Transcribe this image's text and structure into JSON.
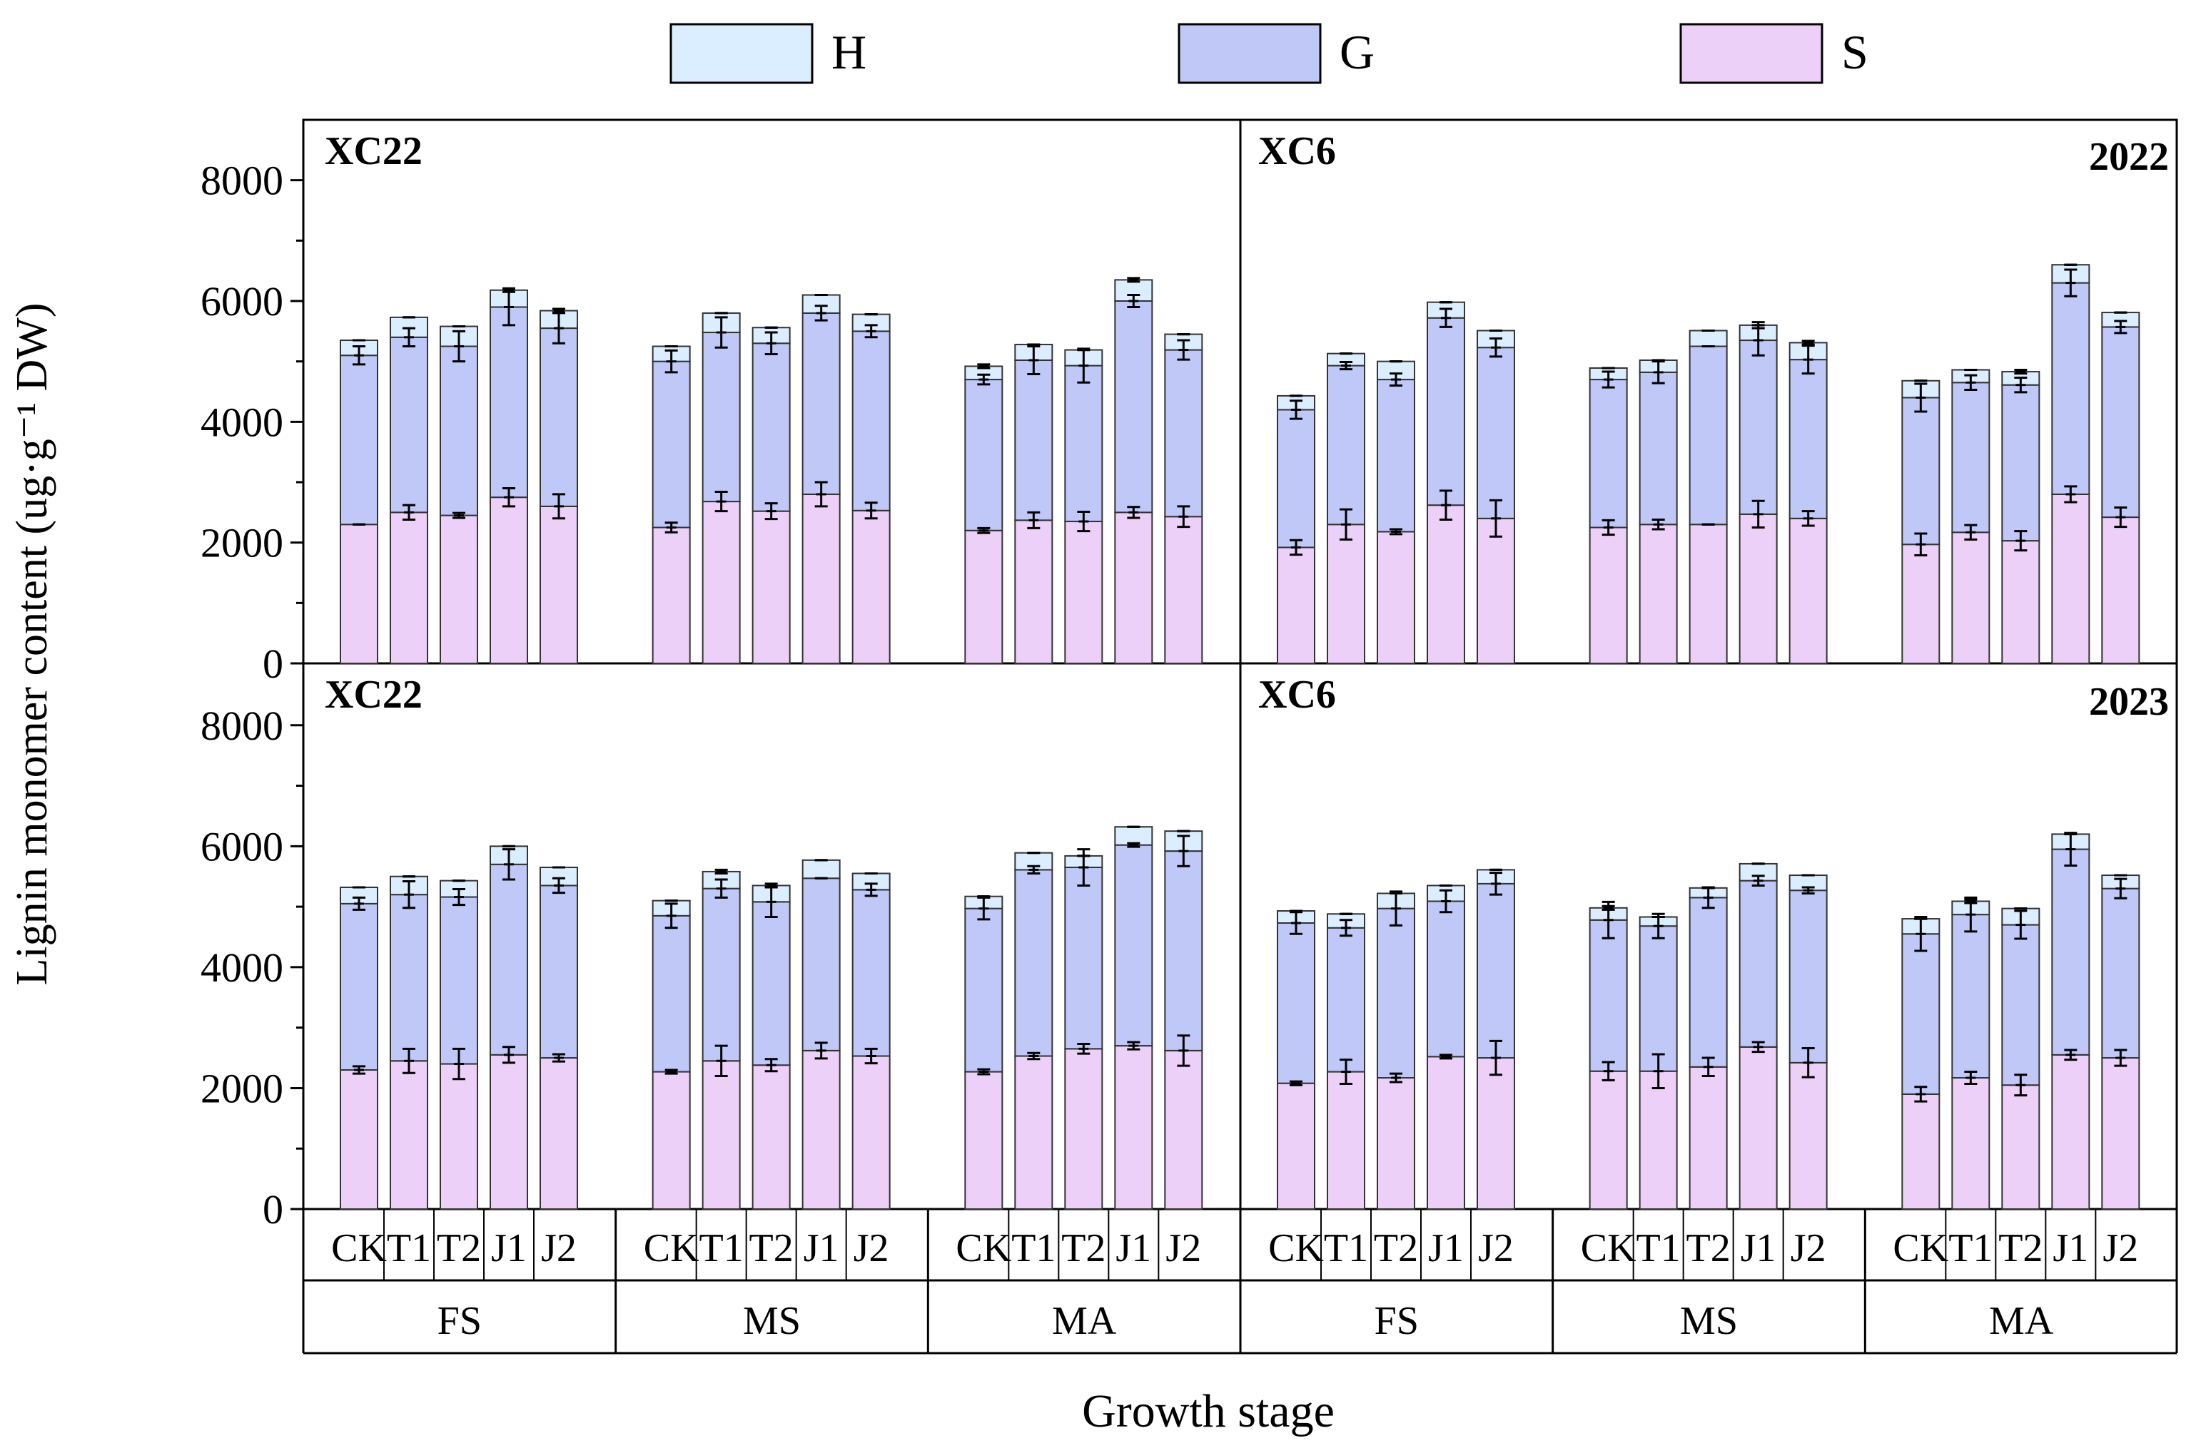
{
  "legend": [
    {
      "key": "H",
      "label": "H",
      "color": "#dbeeff"
    },
    {
      "key": "G",
      "label": "G",
      "color": "#bfc8f7"
    },
    {
      "key": "S",
      "label": "S",
      "color": "#edd0f8"
    }
  ],
  "chart_data": {
    "type": "bar",
    "stacked": true,
    "ylabel": "Lignin monomer content (ug·g⁻¹ DW)",
    "xlabel": "Growth stage",
    "ylim": [
      0,
      9000
    ],
    "yticks": [
      0,
      2000,
      4000,
      6000,
      8000
    ],
    "treatments": [
      "CK",
      "T1",
      "T2",
      "J1",
      "J2"
    ],
    "stages": [
      "FS",
      "MS",
      "MA"
    ],
    "stack_order": [
      "S",
      "G",
      "H"
    ],
    "panels": [
      {
        "cultivar": "XC22",
        "year": "",
        "row": 0,
        "col": 0,
        "S": [
          [
            2300,
            2500,
            2450,
            2750,
            2600
          ],
          [
            2250,
            2680,
            2520,
            2800,
            2530
          ],
          [
            2200,
            2370,
            2350,
            2500,
            2430
          ]
        ],
        "G": [
          [
            2800,
            2900,
            2800,
            3150,
            2950
          ],
          [
            2750,
            2800,
            2780,
            3000,
            2970
          ],
          [
            2500,
            2650,
            2580,
            3500,
            2760
          ]
        ],
        "H": [
          [
            250,
            330,
            330,
            280,
            290
          ],
          [
            250,
            320,
            260,
            300,
            280
          ],
          [
            220,
            260,
            260,
            350,
            260
          ]
        ],
        "errS": [
          [
            0,
            120,
            40,
            150,
            200
          ],
          [
            80,
            160,
            130,
            200,
            130
          ],
          [
            40,
            130,
            160,
            90,
            170
          ]
        ],
        "errSG": [
          [
            150,
            150,
            250,
            300,
            250
          ],
          [
            180,
            250,
            180,
            120,
            100
          ],
          [
            80,
            230,
            280,
            100,
            160
          ]
        ],
        "errTot": [
          [
            0,
            0,
            0,
            30,
            30
          ],
          [
            0,
            0,
            0,
            0,
            0
          ],
          [
            30,
            0,
            0,
            30,
            0
          ]
        ]
      },
      {
        "cultivar": "XC6",
        "year": "2022",
        "row": 0,
        "col": 1,
        "S": [
          [
            1920,
            2300,
            2180,
            2620,
            2400
          ],
          [
            2250,
            2300,
            2300,
            2470,
            2400
          ],
          [
            1970,
            2170,
            2030,
            2800,
            2420
          ]
        ],
        "G": [
          [
            2280,
            2630,
            2520,
            3100,
            2830
          ],
          [
            2450,
            2520,
            2950,
            2880,
            2630
          ],
          [
            2430,
            2480,
            2580,
            3500,
            3150
          ]
        ],
        "H": [
          [
            230,
            200,
            300,
            260,
            280
          ],
          [
            190,
            200,
            260,
            250,
            280
          ],
          [
            280,
            210,
            220,
            300,
            240
          ]
        ],
        "errS": [
          [
            120,
            250,
            40,
            240,
            300
          ],
          [
            120,
            80,
            0,
            220,
            120
          ],
          [
            180,
            120,
            160,
            130,
            160
          ]
        ],
        "errSG": [
          [
            150,
            60,
            100,
            150,
            150
          ],
          [
            130,
            180,
            0,
            250,
            230
          ],
          [
            230,
            120,
            120,
            220,
            100
          ]
        ],
        "errTot": [
          [
            0,
            0,
            0,
            0,
            0
          ],
          [
            0,
            0,
            0,
            50,
            30
          ],
          [
            0,
            0,
            30,
            0,
            0
          ]
        ]
      },
      {
        "cultivar": "XC22",
        "year": "",
        "row": 1,
        "col": 0,
        "S": [
          [
            2300,
            2450,
            2400,
            2550,
            2500
          ],
          [
            2270,
            2450,
            2380,
            2620,
            2530
          ],
          [
            2270,
            2530,
            2650,
            2700,
            2620
          ]
        ],
        "G": [
          [
            2750,
            2750,
            2760,
            3150,
            2850
          ],
          [
            2580,
            2850,
            2700,
            2850,
            2750
          ],
          [
            2700,
            3080,
            3000,
            3320,
            3300
          ]
        ],
        "H": [
          [
            270,
            300,
            270,
            300,
            300
          ],
          [
            250,
            280,
            270,
            300,
            270
          ],
          [
            200,
            280,
            190,
            300,
            330
          ]
        ],
        "errS": [
          [
            60,
            200,
            250,
            130,
            60
          ],
          [
            30,
            250,
            100,
            130,
            120
          ],
          [
            40,
            50,
            80,
            60,
            250
          ]
        ],
        "errSG": [
          [
            100,
            220,
            130,
            250,
            120
          ],
          [
            200,
            150,
            250,
            0,
            100
          ],
          [
            180,
            60,
            300,
            30,
            250
          ]
        ],
        "errTot": [
          [
            0,
            0,
            0,
            0,
            0
          ],
          [
            0,
            30,
            30,
            0,
            0
          ],
          [
            0,
            0,
            0,
            0,
            0
          ]
        ]
      },
      {
        "cultivar": "XC6",
        "year": "2023",
        "row": 1,
        "col": 1,
        "S": [
          [
            2080,
            2270,
            2170,
            2520,
            2500
          ],
          [
            2280,
            2280,
            2350,
            2680,
            2420
          ],
          [
            1900,
            2170,
            2050,
            2550,
            2500
          ]
        ],
        "G": [
          [
            2650,
            2380,
            2800,
            2570,
            2880
          ],
          [
            2500,
            2400,
            2800,
            2750,
            2850
          ],
          [
            2650,
            2700,
            2650,
            3400,
            2800
          ]
        ],
        "H": [
          [
            200,
            230,
            250,
            260,
            230
          ],
          [
            200,
            150,
            160,
            280,
            250
          ],
          [
            250,
            220,
            270,
            250,
            220
          ]
        ],
        "errS": [
          [
            30,
            200,
            70,
            30,
            280
          ],
          [
            150,
            280,
            150,
            80,
            240
          ],
          [
            120,
            100,
            170,
            80,
            130
          ]
        ],
        "errSG": [
          [
            180,
            130,
            280,
            180,
            180
          ],
          [
            300,
            200,
            170,
            80,
            50
          ],
          [
            280,
            280,
            230,
            270,
            160
          ]
        ],
        "errTot": [
          [
            0,
            0,
            0,
            0,
            0
          ],
          [
            30,
            0,
            0,
            0,
            0
          ],
          [
            0,
            30,
            0,
            0,
            0
          ]
        ]
      }
    ]
  }
}
